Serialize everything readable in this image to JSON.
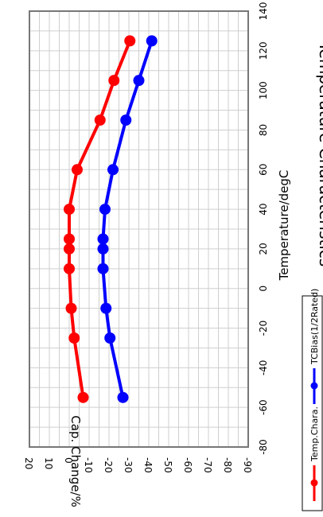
{
  "chart_data": {
    "type": "line",
    "title": "Temperature Characteristics",
    "xlabel": "Temperature/degC",
    "ylabel": "Cap. Change/%",
    "xlim": [
      -80,
      140
    ],
    "ylim": [
      -90,
      20
    ],
    "x_ticks": [
      "-80",
      "-60",
      "-40",
      "-20",
      "0",
      "20",
      "40",
      "60",
      "80",
      "100",
      "120",
      "140"
    ],
    "y_ticks": [
      "20",
      "10",
      "0",
      "-10",
      "-20",
      "-30",
      "-40",
      "-50",
      "-60",
      "-70",
      "-80",
      "-90"
    ],
    "grid": true,
    "legend_position": "bottom",
    "series": [
      {
        "name": "Temp.Chara.",
        "color": "#ff0000",
        "x": [
          -55,
          -25,
          -10,
          10,
          20,
          25,
          40,
          60,
          85,
          105,
          125
        ],
        "y": [
          -7,
          -2.5,
          -1,
          0,
          0,
          0,
          0,
          -4,
          -15.5,
          -22.5,
          -30.5
        ]
      },
      {
        "name": "TCBias(1/2Rated)",
        "color": "#0000ff",
        "x": [
          -55,
          -25,
          -10,
          10,
          20,
          25,
          40,
          60,
          85,
          105,
          125
        ],
        "y": [
          -27,
          -20.5,
          -18.5,
          -17,
          -17,
          -17,
          -18,
          -22,
          -28.5,
          -35,
          -41.5
        ]
      }
    ]
  }
}
